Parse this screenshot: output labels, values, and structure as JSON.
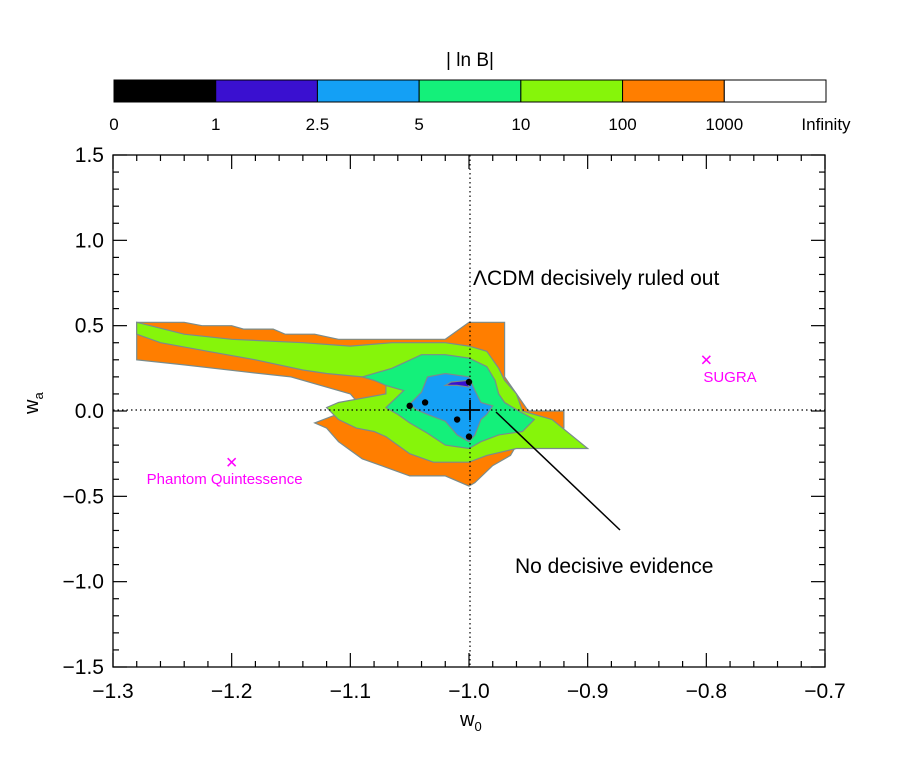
{
  "colorbar": {
    "title": "| ln B|",
    "labels": [
      "0",
      "1",
      "2.5",
      "5",
      "10",
      "100",
      "1000",
      "Infinity"
    ],
    "colors": [
      "#000000",
      "#3a10d0",
      "#14a0f5",
      "#14f07a",
      "#86f50a",
      "#ff7e00",
      "#ffffff"
    ]
  },
  "chart_data": {
    "type": "contour",
    "xlabel": "w0",
    "ylabel": "wa",
    "xlim": [
      -1.3,
      -0.7
    ],
    "ylim": [
      -1.5,
      1.5
    ],
    "xticks": [
      -1.3,
      -1.2,
      -1.1,
      -1.0,
      -0.9,
      -0.8,
      -0.7
    ],
    "xtick_labels": [
      "−1.3",
      "−1.2",
      "−1.1",
      "−1.0",
      "−0.9",
      "−0.8",
      "−0.7"
    ],
    "yticks": [
      -1.5,
      -1.0,
      -0.5,
      0.0,
      0.5,
      1.0,
      1.5
    ],
    "ytick_labels": [
      "−1.5",
      "−1.0",
      "−0.5",
      "0.0",
      "0.5",
      "1.0",
      "1.5"
    ],
    "reference_lines": {
      "x": -1.0,
      "y": 0.0,
      "style": "dotted"
    },
    "regions": [
      {
        "level": "100-1000",
        "color": "#ff7e00",
        "points": [
          [
            -1.28,
            0.52
          ],
          [
            -1.24,
            0.52
          ],
          [
            -1.225,
            0.5
          ],
          [
            -1.2,
            0.5
          ],
          [
            -1.19,
            0.48
          ],
          [
            -1.165,
            0.48
          ],
          [
            -1.155,
            0.45
          ],
          [
            -1.13,
            0.45
          ],
          [
            -1.11,
            0.42
          ],
          [
            -1.02,
            0.42
          ],
          [
            -1.0,
            0.52
          ],
          [
            -0.98,
            0.52
          ],
          [
            -0.97,
            0.52
          ],
          [
            -0.97,
            0.2
          ],
          [
            -0.96,
            0.1
          ],
          [
            -0.95,
            0.0
          ],
          [
            -0.94,
            0.0
          ],
          [
            -0.92,
            0.0
          ],
          [
            -0.92,
            -0.1
          ],
          [
            -0.96,
            -0.2
          ],
          [
            -0.965,
            -0.26
          ],
          [
            -0.98,
            -0.32
          ],
          [
            -0.995,
            -0.42
          ],
          [
            -1.0,
            -0.44
          ],
          [
            -1.02,
            -0.38
          ],
          [
            -1.05,
            -0.38
          ],
          [
            -1.07,
            -0.33
          ],
          [
            -1.09,
            -0.28
          ],
          [
            -1.1,
            -0.23
          ],
          [
            -1.11,
            -0.18
          ],
          [
            -1.12,
            -0.1
          ],
          [
            -1.13,
            -0.07
          ],
          [
            -1.115,
            -0.03
          ],
          [
            -1.09,
            0.02
          ],
          [
            -1.1,
            0.1
          ],
          [
            -1.15,
            0.2
          ],
          [
            -1.19,
            0.23
          ],
          [
            -1.24,
            0.27
          ],
          [
            -1.28,
            0.3
          ]
        ]
      },
      {
        "level": "10-100",
        "color": "#86f50a",
        "points": [
          [
            -1.28,
            0.52
          ],
          [
            -1.24,
            0.45
          ],
          [
            -1.2,
            0.42
          ],
          [
            -1.14,
            0.4
          ],
          [
            -1.1,
            0.38
          ],
          [
            -1.065,
            0.4
          ],
          [
            -1.02,
            0.4
          ],
          [
            -1.0,
            0.38
          ],
          [
            -0.985,
            0.35
          ],
          [
            -0.975,
            0.25
          ],
          [
            -0.97,
            0.18
          ],
          [
            -0.96,
            0.1
          ],
          [
            -0.955,
            0.0
          ],
          [
            -0.93,
            -0.05
          ],
          [
            -0.9,
            -0.22
          ],
          [
            -0.93,
            -0.22
          ],
          [
            -0.96,
            -0.22
          ],
          [
            -0.985,
            -0.26
          ],
          [
            -1.0,
            -0.3
          ],
          [
            -1.03,
            -0.3
          ],
          [
            -1.05,
            -0.25
          ],
          [
            -1.07,
            -0.15
          ],
          [
            -1.08,
            -0.12
          ],
          [
            -1.095,
            -0.1
          ],
          [
            -1.11,
            -0.05
          ],
          [
            -1.12,
            0.02
          ],
          [
            -1.11,
            0.05
          ],
          [
            -1.07,
            0.1
          ],
          [
            -1.07,
            0.16
          ],
          [
            -1.09,
            0.2
          ],
          [
            -1.12,
            0.22
          ],
          [
            -1.14,
            0.24
          ],
          [
            -1.18,
            0.3
          ],
          [
            -1.22,
            0.35
          ],
          [
            -1.26,
            0.4
          ],
          [
            -1.28,
            0.45
          ]
        ]
      },
      {
        "level": "5-10",
        "color": "#14f07a",
        "points": [
          [
            -1.09,
            0.2
          ],
          [
            -1.065,
            0.25
          ],
          [
            -1.04,
            0.33
          ],
          [
            -1.02,
            0.33
          ],
          [
            -1.0,
            0.31
          ],
          [
            -0.985,
            0.26
          ],
          [
            -0.978,
            0.18
          ],
          [
            -0.975,
            0.1
          ],
          [
            -0.97,
            0.05
          ],
          [
            -0.958,
            0.0
          ],
          [
            -0.945,
            -0.05
          ],
          [
            -0.955,
            -0.12
          ],
          [
            -0.975,
            -0.14
          ],
          [
            -0.99,
            -0.18
          ],
          [
            -1.0,
            -0.22
          ],
          [
            -1.02,
            -0.2
          ],
          [
            -1.035,
            -0.13
          ],
          [
            -1.05,
            -0.07
          ],
          [
            -1.06,
            -0.02
          ],
          [
            -1.07,
            0.02
          ],
          [
            -1.055,
            0.12
          ],
          [
            -1.07,
            0.15
          ],
          [
            -1.08,
            0.18
          ]
        ]
      },
      {
        "level": "2.5-5",
        "color": "#14a0f5",
        "points": [
          [
            -1.05,
            0.04
          ],
          [
            -1.04,
            0.11
          ],
          [
            -1.035,
            0.2
          ],
          [
            -1.02,
            0.22
          ],
          [
            -1.0,
            0.2
          ],
          [
            -0.995,
            0.12
          ],
          [
            -0.99,
            0.05
          ],
          [
            -0.98,
            0.03
          ],
          [
            -0.985,
            -0.02
          ],
          [
            -0.99,
            -0.05
          ],
          [
            -0.995,
            -0.14
          ],
          [
            -1.0,
            -0.18
          ],
          [
            -1.01,
            -0.14
          ],
          [
            -1.02,
            -0.06
          ],
          [
            -1.035,
            -0.02
          ],
          [
            -1.045,
            0.01
          ]
        ]
      },
      {
        "level": "1-2.5",
        "color": "#3a10d0",
        "points": [
          [
            -1.015,
            0.17
          ],
          [
            -1.0,
            0.18
          ],
          [
            -1.0,
            0.14
          ],
          [
            -1.01,
            0.15
          ],
          [
            -1.02,
            0.15
          ]
        ]
      }
    ],
    "markers": [
      {
        "name": "SUGRA",
        "x": -0.8,
        "y": 0.3
      },
      {
        "name": "Phantom Quintessence",
        "x": -1.2,
        "y": -0.3
      }
    ],
    "black_points": [
      [
        -1.0,
        0.17
      ],
      [
        -1.05,
        0.03
      ],
      [
        -1.037,
        0.05
      ],
      [
        -1.01,
        -0.05
      ],
      [
        -1.0,
        -0.15
      ]
    ],
    "annotations": {
      "lcdm": "ΛCDM decisively ruled out",
      "no_evidence": "No decisive evidence"
    },
    "arrow": {
      "from": [
        -0.86,
        -0.7
      ],
      "to": [
        -0.985,
        -0.02
      ]
    },
    "cross": {
      "x": -1.0,
      "y": 0.0
    }
  }
}
